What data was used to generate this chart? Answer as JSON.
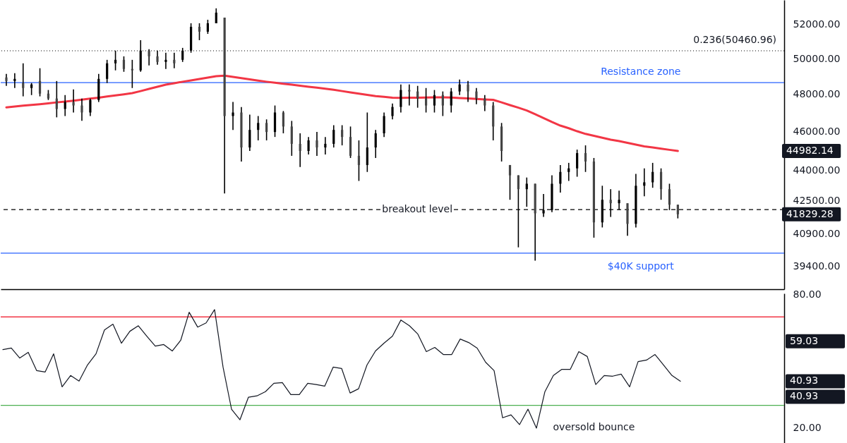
{
  "chart_data": [
    {
      "type": "candlestick",
      "categories": [
        null,
        null,
        null,
        null,
        null,
        null,
        null,
        null,
        null,
        null,
        null,
        null,
        null,
        null,
        null,
        null,
        null,
        null,
        null,
        null,
        null,
        null,
        null,
        null,
        null,
        null,
        null,
        null,
        null,
        null,
        null,
        null,
        null,
        null,
        null,
        null,
        null,
        null,
        null,
        null,
        null,
        null,
        null,
        null,
        null,
        null,
        null,
        null,
        null,
        null,
        null,
        null,
        null,
        null,
        null,
        null,
        null,
        null,
        null,
        null,
        null,
        null,
        null,
        null,
        null,
        null,
        null,
        null,
        null,
        null,
        null,
        null,
        null,
        null,
        null,
        null,
        null,
        null,
        null,
        null,
        null
      ],
      "ohlc": [
        [
          48940,
          49140,
          48470,
          48740
        ],
        [
          48740,
          49180,
          48350,
          48860
        ],
        [
          48630,
          49740,
          47890,
          48350
        ],
        [
          48350,
          48630,
          47960,
          48550
        ],
        [
          48740,
          49460,
          47890,
          48040
        ],
        [
          48040,
          48240,
          47690,
          47770
        ],
        [
          47770,
          48740,
          46750,
          47200
        ],
        [
          47200,
          47960,
          46820,
          47580
        ],
        [
          47580,
          48270,
          47010,
          47390
        ],
        [
          47390,
          47770,
          46560,
          47010
        ],
        [
          47010,
          47770,
          46820,
          47690
        ],
        [
          47690,
          49140,
          47580,
          48860
        ],
        [
          48860,
          49940,
          48630,
          49740
        ],
        [
          49740,
          50470,
          49340,
          49940
        ],
        [
          49940,
          50140,
          49260,
          49420
        ],
        [
          49420,
          49940,
          48350,
          49340
        ],
        [
          49340,
          51080,
          49260,
          50470
        ],
        [
          50470,
          50550,
          49620,
          50140
        ],
        [
          50140,
          50470,
          49660,
          49820
        ],
        [
          49820,
          50350,
          49420,
          49940
        ],
        [
          49940,
          50350,
          49460,
          49740
        ],
        [
          49940,
          50630,
          49820,
          50470
        ],
        [
          50470,
          52080,
          50350,
          51870
        ],
        [
          51870,
          52080,
          51080,
          51580
        ],
        [
          51580,
          52290,
          51450,
          52080
        ],
        [
          52080,
          52980,
          52080,
          52720
        ],
        [
          52420,
          52420,
          42840,
          46820
        ],
        [
          46820,
          47580,
          46080,
          47010
        ],
        [
          47010,
          47310,
          44440,
          45160
        ],
        [
          45160,
          46900,
          44980,
          46080
        ],
        [
          46080,
          46820,
          45530,
          46450
        ],
        [
          46450,
          46640,
          45530,
          45970
        ],
        [
          45970,
          47390,
          45710,
          47010
        ],
        [
          47010,
          47090,
          45900,
          46260
        ],
        [
          46260,
          46560,
          44730,
          45350
        ],
        [
          45350,
          45900,
          44160,
          44980
        ],
        [
          44980,
          45710,
          44800,
          45530
        ],
        [
          45530,
          45970,
          44730,
          45160
        ],
        [
          45160,
          45710,
          44800,
          45350
        ],
        [
          45350,
          46330,
          45160,
          46080
        ],
        [
          46080,
          46330,
          45270,
          45710
        ],
        [
          45710,
          46260,
          44620,
          44730
        ],
        [
          44730,
          45530,
          43460,
          44260
        ],
        [
          44260,
          47010,
          43910,
          45160
        ],
        [
          45160,
          46080,
          44620,
          45900
        ],
        [
          45900,
          47010,
          45710,
          46820
        ],
        [
          46820,
          47500,
          46640,
          47310
        ],
        [
          47310,
          48550,
          47010,
          48240
        ],
        [
          48240,
          48550,
          47390,
          48160
        ],
        [
          48160,
          48470,
          47270,
          47770
        ],
        [
          47770,
          48350,
          47010,
          47390
        ],
        [
          47390,
          48240,
          47010,
          47960
        ],
        [
          47960,
          48160,
          46820,
          47390
        ],
        [
          47390,
          48350,
          47010,
          48160
        ],
        [
          48160,
          48820,
          47960,
          48550
        ],
        [
          48550,
          48740,
          47580,
          48160
        ],
        [
          48160,
          48350,
          47460,
          47770
        ],
        [
          47770,
          47960,
          47090,
          47390
        ],
        [
          47390,
          47580,
          45530,
          46260
        ],
        [
          46260,
          46450,
          44440,
          44980
        ],
        [
          44260,
          44260,
          42530,
          43740
        ],
        [
          43740,
          43740,
          40270,
          43050
        ],
        [
          43050,
          43630,
          42190,
          43320
        ],
        [
          43320,
          43320,
          39660,
          41870
        ],
        [
          41870,
          42810,
          41700,
          42030
        ],
        [
          42030,
          43740,
          41930,
          43320
        ],
        [
          43320,
          44260,
          42880,
          43910
        ],
        [
          43910,
          44370,
          43460,
          44090
        ],
        [
          44090,
          45050,
          43670,
          44870
        ],
        [
          44870,
          45270,
          43910,
          44440
        ],
        [
          44440,
          44620,
          40720,
          41440
        ],
        [
          41440,
          43220,
          41200,
          42530
        ],
        [
          42530,
          43050,
          41700,
          42360
        ],
        [
          42360,
          42980,
          42030,
          42530
        ],
        [
          42360,
          42360,
          40810,
          41370
        ],
        [
          41370,
          43810,
          41200,
          43220
        ],
        [
          43220,
          44090,
          42700,
          43390
        ],
        [
          43390,
          44370,
          43120,
          43910
        ],
        [
          43910,
          44090,
          42530,
          43050
        ],
        [
          43050,
          43320,
          42030,
          42290
        ],
        [
          42290,
          42290,
          41630,
          41829.28
        ]
      ],
      "series": [
        {
          "type": "line",
          "color": "#f23645",
          "values": [
            47290,
            47330,
            47380,
            47420,
            47460,
            47510,
            47560,
            47600,
            47650,
            47710,
            47770,
            47820,
            47880,
            47940,
            48000,
            48070,
            48180,
            48300,
            48420,
            48540,
            48620,
            48700,
            48770,
            48850,
            48930,
            49010,
            49040,
            48970,
            48900,
            48830,
            48760,
            48700,
            48650,
            48590,
            48540,
            48480,
            48420,
            48370,
            48310,
            48250,
            48180,
            48110,
            48040,
            47970,
            47900,
            47860,
            47820,
            47810,
            47820,
            47820,
            47830,
            47840,
            47840,
            47830,
            47800,
            47780,
            47750,
            47720,
            47700,
            47560,
            47410,
            47270,
            47120,
            46920,
            46710,
            46500,
            46310,
            46170,
            46010,
            45870,
            45770,
            45670,
            45570,
            45490,
            45400,
            45310,
            45220,
            45160,
            45100,
            45040,
            44982.14
          ]
        }
      ],
      "log": "y",
      "ylim": [
        38380,
        53490
      ],
      "yticks": [
        {
          "value": 39400,
          "label": "39400.00"
        },
        {
          "value": 40900,
          "label": "40900.00"
        },
        {
          "value": 42500,
          "label": "42500.00"
        },
        {
          "value": 44000,
          "label": "44000.00"
        },
        {
          "value": 46000,
          "label": "46000.00"
        },
        {
          "value": 48000,
          "label": "48000.00"
        },
        {
          "value": 50000,
          "label": "50000.00"
        },
        {
          "value": 52000,
          "label": "52000.00"
        }
      ],
      "ref_lines": [
        {
          "axis": "y",
          "value": 50460.96,
          "label": "0.236(50460.96)",
          "color": "#000000",
          "line_style": "dotted"
        },
        {
          "axis": "y",
          "value": 48650,
          "label": "Resistance zone",
          "color": "#2962ff",
          "line_style": "solid"
        },
        {
          "axis": "y",
          "value": 42050,
          "label": "breakout level",
          "color": "#000000",
          "line_style": "dashed"
        },
        {
          "axis": "y",
          "value": 40000,
          "label": "$40K support",
          "color": "#2962ff",
          "line_style": "solid"
        }
      ],
      "annotations": [
        "44982.14",
        "41829.28"
      ],
      "tick_labels": "y",
      "grid": false
    },
    {
      "type": "line",
      "categories": [
        null,
        null,
        null,
        null,
        null,
        null,
        null,
        null,
        null,
        null,
        null,
        null,
        null,
        null,
        null,
        null,
        null,
        null,
        null,
        null,
        null,
        null,
        null,
        null,
        null,
        null,
        null,
        null,
        null,
        null,
        null,
        null,
        null,
        null,
        null,
        null,
        null,
        null,
        null,
        null,
        null,
        null,
        null,
        null,
        null,
        null,
        null,
        null,
        null,
        null,
        null,
        null,
        null,
        null,
        null,
        null,
        null,
        null,
        null,
        null,
        null,
        null,
        null,
        null,
        null,
        null,
        null,
        null,
        null,
        null,
        null,
        null,
        null,
        null,
        null,
        null,
        null,
        null,
        null,
        null,
        null
      ],
      "series": [
        {
          "color": "#131722",
          "values": [
            55.2,
            55.9,
            51.4,
            54.0,
            45.7,
            45.1,
            53.3,
            38.4,
            43.5,
            41.0,
            48.3,
            53.3,
            64.1,
            66.7,
            58.1,
            63.5,
            66.0,
            61.3,
            56.8,
            57.5,
            54.6,
            59.4,
            72.1,
            65.4,
            67.3,
            73.3,
            47.3,
            28.3,
            23.5,
            33.7,
            34.3,
            36.2,
            40.0,
            40.3,
            34.9,
            34.9,
            40.0,
            39.4,
            38.7,
            47.3,
            46.7,
            35.6,
            37.5,
            48.3,
            54.6,
            58.1,
            61.3,
            68.6,
            66.0,
            62.2,
            54.3,
            56.2,
            53.0,
            53.0,
            60.0,
            58.4,
            55.9,
            49.5,
            45.7,
            24.4,
            25.7,
            21.3,
            28.3,
            19.7,
            36.2,
            43.5,
            46.3,
            46.3,
            54.3,
            52.1,
            39.4,
            43.5,
            43.2,
            44.1,
            38.4,
            49.8,
            50.5,
            53.0,
            48.3,
            43.5,
            40.93
          ]
        }
      ],
      "ylim": [
        11.4,
        80.6
      ],
      "yticks": [
        {
          "value": 20,
          "label": "20.00"
        },
        {
          "value": 80,
          "label": "80.00"
        }
      ],
      "ref_lines": [
        {
          "axis": "y",
          "value": 70,
          "color": "#f23645",
          "line_style": "solid"
        },
        {
          "axis": "y",
          "value": 30,
          "color": "#4caf50",
          "line_style": "solid"
        }
      ],
      "annotations": [
        "oversold bounce",
        "59.03",
        "40.93",
        "40.93"
      ],
      "tick_labels": "y",
      "grid": false
    }
  ]
}
